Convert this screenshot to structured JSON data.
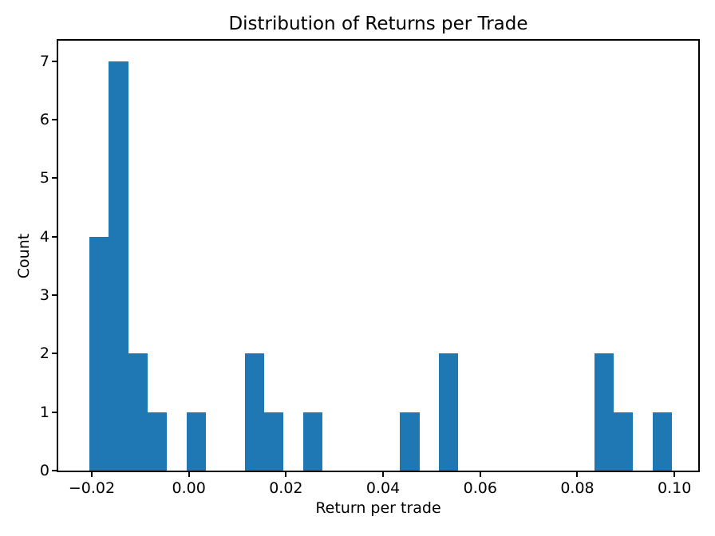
{
  "figure": {
    "background": "#ffffff"
  },
  "chart_data": {
    "type": "bar",
    "subtype": "histogram",
    "title": "Distribution of Returns per Trade",
    "xlabel": "Return per trade",
    "ylabel": "Count",
    "bar_color": "#1f77b4",
    "axis_color": "#000000",
    "grid": false,
    "legend": null,
    "bin_edges": [
      -0.0205,
      -0.0165,
      -0.0125,
      -0.0085,
      -0.0045,
      -0.0005,
      0.0035,
      0.0075,
      0.0115,
      0.0155,
      0.0195,
      0.0235,
      0.0275,
      0.0315,
      0.0355,
      0.0395,
      0.0435,
      0.0475,
      0.0515,
      0.0555,
      0.0595,
      0.0635,
      0.0675,
      0.0715,
      0.0755,
      0.0795,
      0.0835,
      0.0875,
      0.0915,
      0.0955,
      0.0995
    ],
    "counts": [
      4,
      7,
      2,
      1,
      0,
      1,
      0,
      0,
      2,
      1,
      0,
      1,
      0,
      0,
      0,
      0,
      1,
      0,
      2,
      0,
      0,
      0,
      0,
      0,
      0,
      0,
      2,
      1,
      0,
      1
    ],
    "total_count": 26,
    "xticks": {
      "values": [
        -0.02,
        0.0,
        0.02,
        0.04,
        0.06,
        0.08,
        0.1
      ],
      "labels": [
        "−0.02",
        "0.00",
        "0.02",
        "0.04",
        "0.06",
        "0.08",
        "0.10"
      ]
    },
    "yticks": {
      "values": [
        0,
        1,
        2,
        3,
        4,
        5,
        6,
        7
      ],
      "labels": [
        "0",
        "1",
        "2",
        "3",
        "4",
        "5",
        "6",
        "7"
      ]
    },
    "xlim": [
      -0.0269,
      0.1049
    ],
    "ylim": [
      0,
      7.35
    ]
  }
}
